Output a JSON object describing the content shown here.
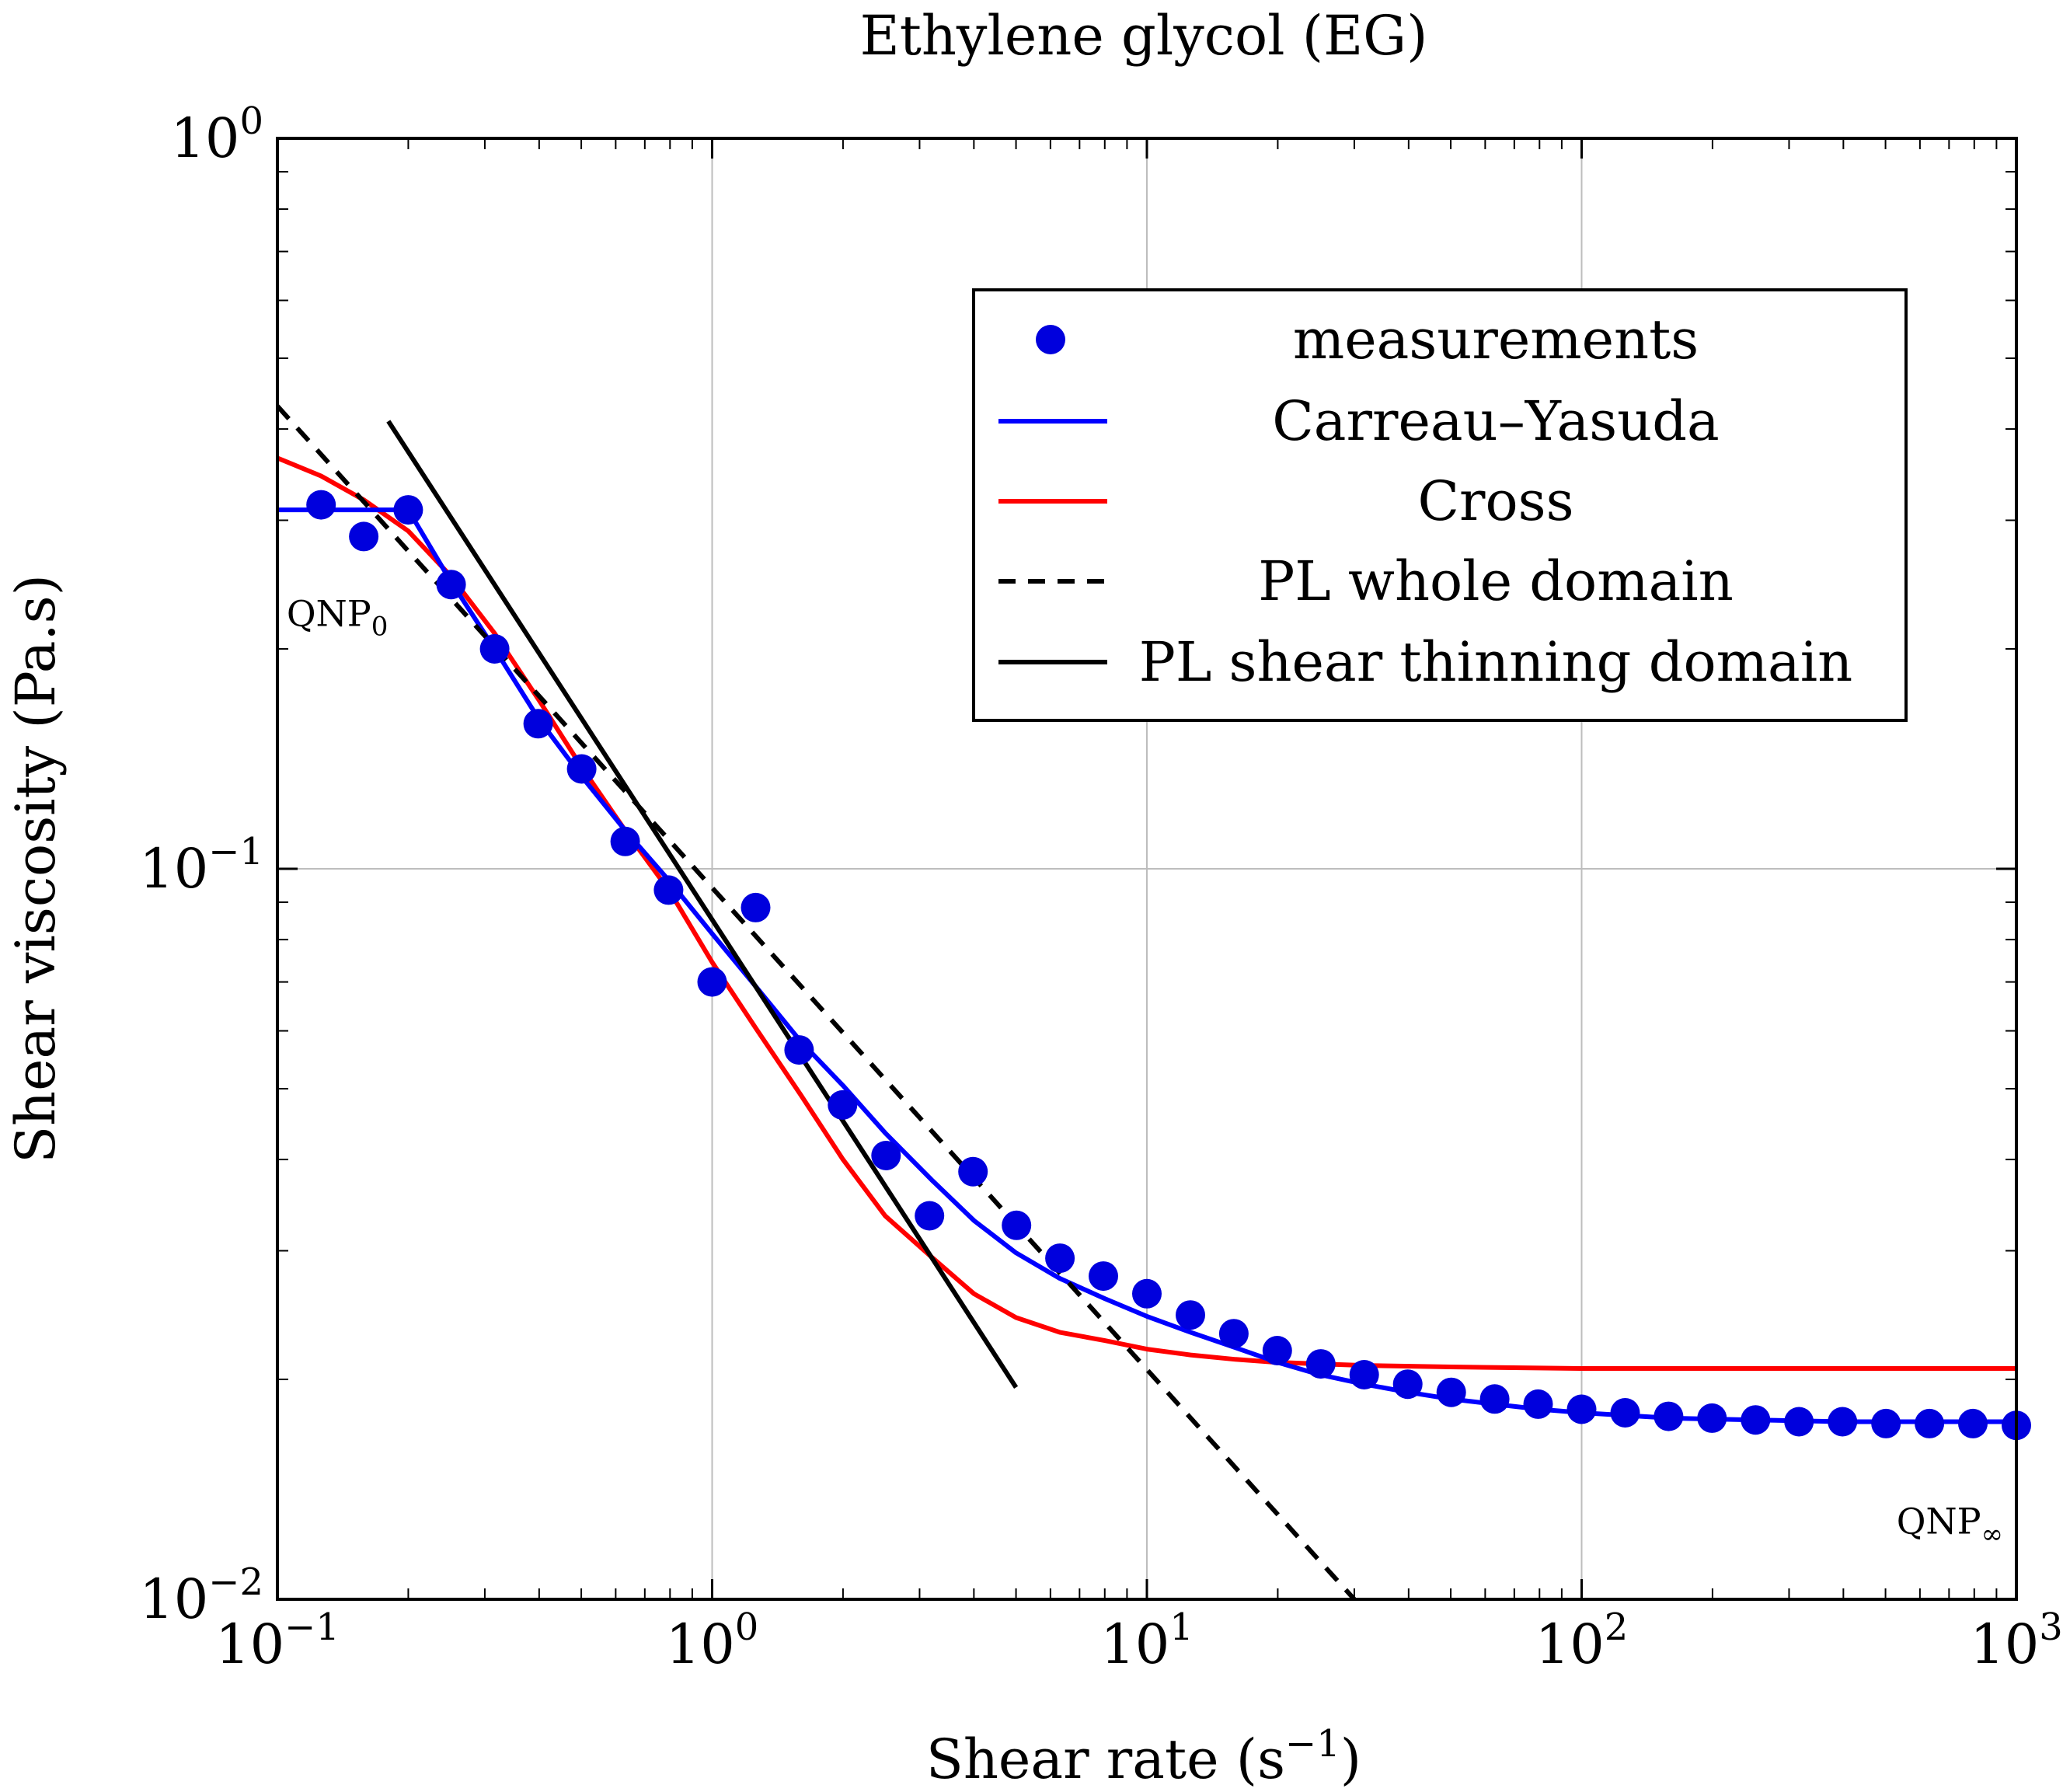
{
  "chart_data": {
    "type": "line",
    "title": "Ethylene glycol (EG)",
    "xlabel": "Shear rate (s",
    "xlabel_exp": "−1",
    "xlabel_close": ")",
    "ylabel": "Shear viscosity (Pa.s)",
    "xscale": "log",
    "yscale": "log",
    "xlim": [
      0.1,
      1000
    ],
    "ylim": [
      0.01,
      1
    ],
    "grid": true,
    "legend_position": "top-right",
    "x_ticks": [
      {
        "value": 0.1,
        "base": "10",
        "exp": "−1"
      },
      {
        "value": 1,
        "base": "10",
        "exp": "0"
      },
      {
        "value": 10,
        "base": "10",
        "exp": "1"
      },
      {
        "value": 100,
        "base": "10",
        "exp": "2"
      },
      {
        "value": 1000,
        "base": "10",
        "exp": "3"
      }
    ],
    "y_ticks": [
      {
        "value": 0.01,
        "base": "10",
        "exp": "−2"
      },
      {
        "value": 0.1,
        "base": "10",
        "exp": "−1"
      },
      {
        "value": 1,
        "base": "10",
        "exp": "0"
      }
    ],
    "series": [
      {
        "name": "measurements",
        "kind": "scatter",
        "color": "#0000dd",
        "x": [
          0.126,
          0.158,
          0.2,
          0.251,
          0.316,
          0.398,
          0.501,
          0.631,
          0.794,
          1.0,
          1.259,
          1.585,
          1.995,
          2.512,
          3.162,
          3.981,
          5.012,
          6.31,
          7.943,
          10.0,
          12.59,
          15.85,
          19.95,
          25.12,
          31.62,
          39.81,
          50.12,
          63.1,
          79.43,
          100.0,
          125.9,
          158.5,
          199.5,
          251.2,
          316.2,
          398.1,
          501.2,
          631.0,
          794.3,
          1000.0
        ],
        "y": [
          0.315,
          0.285,
          0.31,
          0.245,
          0.2,
          0.158,
          0.137,
          0.109,
          0.0935,
          0.07,
          0.0885,
          0.0565,
          0.0475,
          0.0405,
          0.0335,
          0.0385,
          0.0325,
          0.0293,
          0.0277,
          0.0262,
          0.0245,
          0.0231,
          0.0219,
          0.021,
          0.0203,
          0.0197,
          0.0192,
          0.0188,
          0.0185,
          0.0182,
          0.018,
          0.0178,
          0.0177,
          0.0176,
          0.0175,
          0.0175,
          0.0174,
          0.0174,
          0.0174,
          0.0173
        ]
      },
      {
        "name": "Carreau–Yasuda",
        "kind": "line",
        "color": "#0000ff",
        "style": "solid",
        "x": [
          0.1,
          0.15,
          0.2,
          0.25,
          0.316,
          0.4,
          0.5,
          0.63,
          0.8,
          1.0,
          1.26,
          1.6,
          2.0,
          2.5,
          3.2,
          4.0,
          5.0,
          6.3,
          8.0,
          10.0,
          12.6,
          16.0,
          20.0,
          25.0,
          31.6,
          40.0,
          50.0,
          63.0,
          80.0,
          100.0,
          160.0,
          250.0,
          400.0,
          630.0,
          1000.0
        ],
        "y": [
          0.31,
          0.31,
          0.31,
          0.248,
          0.2,
          0.16,
          0.134,
          0.113,
          0.096,
          0.0815,
          0.069,
          0.058,
          0.0505,
          0.0435,
          0.0375,
          0.033,
          0.0298,
          0.0275,
          0.0258,
          0.0244,
          0.0232,
          0.0221,
          0.0211,
          0.0203,
          0.0197,
          0.0192,
          0.0188,
          0.0185,
          0.0182,
          0.018,
          0.0177,
          0.0176,
          0.0175,
          0.0175,
          0.0175
        ]
      },
      {
        "name": "Cross",
        "kind": "line",
        "color": "#ff0000",
        "style": "solid",
        "x": [
          0.1,
          0.126,
          0.158,
          0.2,
          0.25,
          0.316,
          0.4,
          0.5,
          0.63,
          0.8,
          1.0,
          1.26,
          1.6,
          2.0,
          2.5,
          3.2,
          4.0,
          5.0,
          6.3,
          8.0,
          10.0,
          12.6,
          16.0,
          20.0,
          25.0,
          31.6,
          50.0,
          100.0,
          200.0,
          500.0,
          1000.0
        ],
        "y": [
          0.365,
          0.345,
          0.32,
          0.29,
          0.252,
          0.21,
          0.17,
          0.138,
          0.113,
          0.093,
          0.0745,
          0.0605,
          0.049,
          0.04,
          0.0335,
          0.0294,
          0.0262,
          0.0243,
          0.0232,
          0.0226,
          0.022,
          0.0216,
          0.0213,
          0.0211,
          0.021,
          0.0209,
          0.0208,
          0.0207,
          0.0207,
          0.0207,
          0.0207
        ]
      },
      {
        "name": "PL whole domain",
        "kind": "line",
        "color": "#000000",
        "style": "dashed",
        "x": [
          0.1,
          30.0
        ],
        "y": [
          0.43,
          0.01
        ]
      },
      {
        "name": "PL shear thinning domain",
        "kind": "line",
        "color": "#000000",
        "style": "solid",
        "x": [
          0.18,
          5.0
        ],
        "y": [
          0.41,
          0.0195
        ]
      }
    ],
    "annotations": [
      {
        "text": "QNP",
        "sub": "0",
        "x": 0.105,
        "y": 0.215
      },
      {
        "text": "QNP",
        "sub": "∞",
        "x": 530,
        "y": 0.0123
      }
    ]
  }
}
